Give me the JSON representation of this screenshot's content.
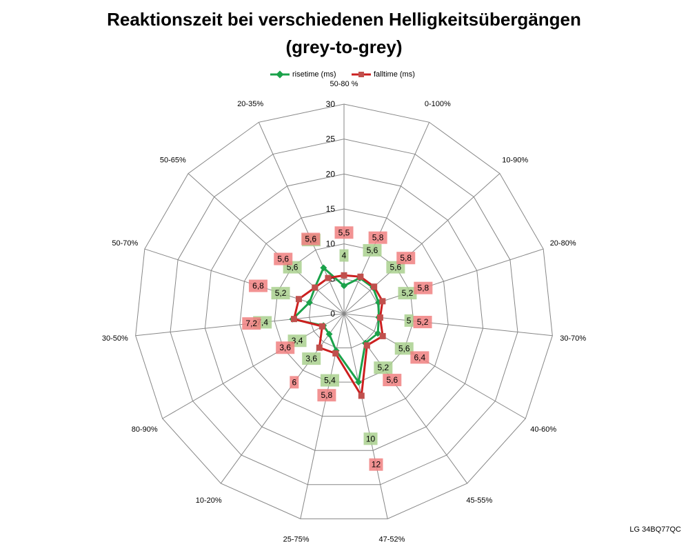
{
  "chart_data": {
    "type": "radar",
    "title": [
      "Reaktionszeit bei verschiedenen Helligkeitsübergängen",
      "(grey-to-grey)"
    ],
    "categories": [
      "50-80 %",
      "0-100%",
      "10-90%",
      "20-80%",
      "30-70%",
      "40-60%",
      "45-55%",
      "47-52%",
      "25-75%",
      "10-20%",
      "80-90%",
      "30-50%",
      "50-70%",
      "50-65%",
      "20-35%"
    ],
    "ylim": [
      0,
      30
    ],
    "ticks": [
      "0",
      "5",
      "10",
      "15",
      "20",
      "25",
      "30"
    ],
    "legend_position": "top",
    "series": [
      {
        "name": "risetime (ms)",
        "color": "#1aa24a",
        "values": [
          4,
          5.6,
          5.6,
          5.2,
          5,
          5.6,
          5.2,
          10,
          5.4,
          3.6,
          3.4,
          7.4,
          5.2,
          5.6,
          7.2
        ],
        "labels": [
          "4",
          "5,6",
          "5,6",
          "5,2",
          "5",
          "5,6",
          "5,2",
          "10",
          "5,4",
          "3,6",
          "3,4",
          "7,4",
          "5,2",
          "5,6",
          "7,2"
        ]
      },
      {
        "name": "falltime (ms)",
        "color": "#cc1f1f",
        "values": [
          5.5,
          5.8,
          5.8,
          5.8,
          5.2,
          6.4,
          5.6,
          12,
          5.8,
          6,
          3.6,
          7.2,
          6.8,
          5.6,
          5.6
        ],
        "labels": [
          "5,5",
          "5,8",
          "5,8",
          "5,8",
          "5,2",
          "6,4",
          "5,6",
          "12",
          "5,8",
          "6",
          "3,6",
          "7,2",
          "6,8",
          "5,6",
          "5,6"
        ]
      }
    ]
  },
  "credit": "LG 34BQ77QC"
}
